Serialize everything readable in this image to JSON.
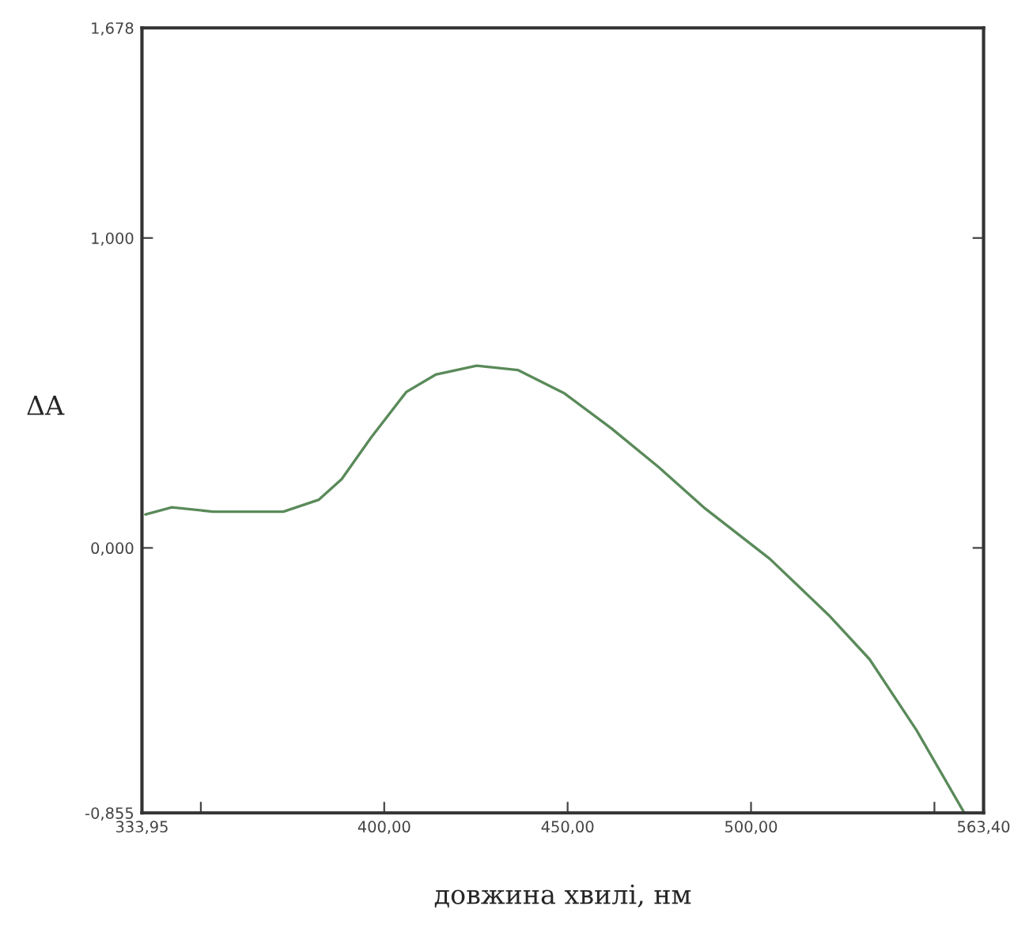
{
  "chart_data": {
    "type": "line",
    "xlabel": "довжина хвилі, нм",
    "ylabel": "ΔA",
    "x": [
      334.9,
      342.1,
      353.3,
      372.5,
      382.1,
      388.4,
      396.4,
      406.0,
      414.0,
      425.2,
      436.4,
      449.2,
      462.0,
      474.8,
      487.5,
      505.1,
      521.1,
      532.3,
      545.1,
      557.9
    ],
    "series": [
      {
        "color": "#5a8a5a",
        "values": [
          0.108,
          0.131,
          0.117,
          0.117,
          0.155,
          0.222,
          0.356,
          0.503,
          0.559,
          0.588,
          0.574,
          0.498,
          0.385,
          0.261,
          0.127,
          -0.035,
          -0.216,
          -0.359,
          -0.588,
          -0.85
        ]
      }
    ],
    "xlim": [
      333.95,
      563.4
    ],
    "ylim": [
      -0.855,
      1.678
    ],
    "xticks": [
      {
        "value": 333.95,
        "label": "333,95"
      },
      {
        "value": 350,
        "label": null
      },
      {
        "value": 400,
        "label": "400,00"
      },
      {
        "value": 450,
        "label": "450,00"
      },
      {
        "value": 500,
        "label": "500,00"
      },
      {
        "value": 550,
        "label": null
      },
      {
        "value": 563.4,
        "label": "563,40"
      }
    ],
    "yticks": [
      {
        "value": -0.855,
        "label": "-0,855"
      },
      {
        "value": 0,
        "label": "0,000"
      },
      {
        "value": 1.0,
        "label": "1,000"
      },
      {
        "value": 1.678,
        "label": "1,678"
      }
    ],
    "grid": false,
    "legend": false,
    "line_style": "solid",
    "marker": "none"
  }
}
